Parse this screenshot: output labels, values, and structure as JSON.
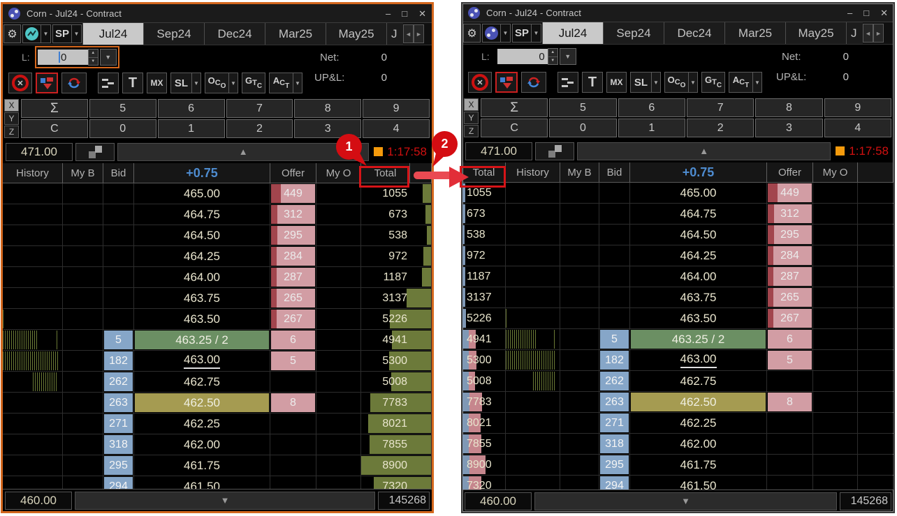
{
  "app": {
    "title": "Corn - Jul24 - Contract",
    "window_controls": {
      "minimize": "–",
      "maximize": "□",
      "close": "✕"
    },
    "toolbar": {
      "gear_icon": "⚙",
      "sp_label": "SP",
      "dropdown_icon": "▼",
      "tab_prev_icon": "◄",
      "tab_next_icon": "►"
    },
    "tabs": {
      "t1": "Jul24",
      "t2": "Sep24",
      "t3": "Dec24",
      "t4": "Mar25",
      "t5": "May25",
      "t6": "J"
    },
    "order_row": {
      "l_label": "L:",
      "l_value": "0",
      "net_label": "Net:",
      "net_value": "0",
      "upl_label": "UP&L:",
      "upl_value": "0"
    },
    "buttons": {
      "cancel_x": "✕",
      "t": "T",
      "mx": "MX",
      "sl": "SL",
      "oco": {
        "a": "O",
        "b": "C",
        "c": "O"
      },
      "gtc": {
        "a": "G",
        "b": "T",
        "c": "C"
      },
      "act": {
        "a": "A",
        "b": "C",
        "c": "T"
      }
    },
    "keypad": {
      "x": "X",
      "y": "Y",
      "z": "Z",
      "row1": [
        "Σ",
        "5",
        "6",
        "7",
        "8",
        "9"
      ],
      "row2": [
        "C",
        "0",
        "1",
        "2",
        "3",
        "4"
      ]
    },
    "price_nav": {
      "top_price": "471.00",
      "bottom_price": "460.00",
      "timer": "1:17:58",
      "total_volume": "145268",
      "up_icon": "▲",
      "down_icon": "▼"
    },
    "headers": {
      "history": "History",
      "my_bid": "My B",
      "bid": "Bid",
      "change": "+0.75",
      "offer": "Offer",
      "my_offer": "My O",
      "total": "Total"
    }
  },
  "ladder": {
    "rows": [
      {
        "price": "465.00",
        "bid": "",
        "offer": "449",
        "total": "1055",
        "offer_bar": 0.23,
        "total_bar": 0.12,
        "rt_blue": 0.07,
        "rt_pink": 0,
        "hist": [],
        "style": ""
      },
      {
        "price": "464.75",
        "bid": "",
        "offer": "312",
        "total": "673",
        "offer_bar": 0.15,
        "total_bar": 0.08,
        "rt_blue": 0.06,
        "rt_pink": 0,
        "hist": [],
        "style": ""
      },
      {
        "price": "464.50",
        "bid": "",
        "offer": "295",
        "total": "538",
        "offer_bar": 0.14,
        "total_bar": 0.06,
        "rt_blue": 0.05,
        "rt_pink": 0,
        "hist": [],
        "style": ""
      },
      {
        "price": "464.25",
        "bid": "",
        "offer": "284",
        "total": "972",
        "offer_bar": 0.13,
        "total_bar": 0.11,
        "rt_blue": 0.06,
        "rt_pink": 0,
        "hist": [],
        "style": ""
      },
      {
        "price": "464.00",
        "bid": "",
        "offer": "287",
        "total": "1187",
        "offer_bar": 0.13,
        "total_bar": 0.13,
        "rt_blue": 0.07,
        "rt_pink": 0,
        "hist": [],
        "style": ""
      },
      {
        "price": "463.75",
        "bid": "",
        "offer": "265",
        "total": "3137",
        "offer_bar": 0.12,
        "total_bar": 0.35,
        "rt_blue": 0.07,
        "rt_pink": 0,
        "hist": [],
        "style": ""
      },
      {
        "price": "463.50",
        "bid": "",
        "offer": "267",
        "total": "5226",
        "offer_bar": 0.12,
        "total_bar": 0.58,
        "rt_blue": 0.08,
        "rt_pink": 0,
        "hist": [
          [
            0,
            0.035
          ]
        ],
        "style": ""
      },
      {
        "price": "463.25 / 2",
        "bid": "5",
        "offer": "6",
        "total": "4941",
        "offer_bar": 0,
        "total_bar": 0.55,
        "rt_blue": 0.15,
        "rt_pink": 0.16,
        "hist": [
          [
            0,
            0.58
          ],
          [
            0.9,
            0.04
          ]
        ],
        "style": "trade"
      },
      {
        "price": "463.00",
        "bid": "182",
        "offer": "5",
        "total": "5300",
        "offer_bar": 0,
        "total_bar": 0.59,
        "rt_blue": 0.15,
        "rt_pink": 0.17,
        "hist": [
          [
            0,
            0.94
          ]
        ],
        "style": "underline"
      },
      {
        "price": "462.75",
        "bid": "262",
        "offer": "",
        "total": "5008",
        "offer_bar": 0,
        "total_bar": 0.56,
        "rt_blue": 0.14,
        "rt_pink": 0.15,
        "hist": [
          [
            0.5,
            0.42
          ]
        ],
        "style": ""
      },
      {
        "price": "462.50",
        "bid": "263",
        "offer": "8",
        "total": "7783",
        "offer_bar": 0,
        "total_bar": 0.86,
        "rt_blue": 0.16,
        "rt_pink": 0.3,
        "hist": [],
        "style": "pause"
      },
      {
        "price": "462.25",
        "bid": "271",
        "offer": "",
        "total": "8021",
        "offer_bar": 0,
        "total_bar": 0.89,
        "rt_blue": 0.14,
        "rt_pink": 0.28,
        "hist": [],
        "style": ""
      },
      {
        "price": "462.00",
        "bid": "318",
        "offer": "",
        "total": "7855",
        "offer_bar": 0,
        "total_bar": 0.87,
        "rt_blue": 0.14,
        "rt_pink": 0.3,
        "hist": [],
        "style": ""
      },
      {
        "price": "461.75",
        "bid": "295",
        "offer": "",
        "total": "8900",
        "offer_bar": 0,
        "total_bar": 0.99,
        "rt_blue": 0.16,
        "rt_pink": 0.38,
        "hist": [],
        "style": ""
      },
      {
        "price": "461.50",
        "bid": "294",
        "offer": "",
        "total": "7320",
        "offer_bar": 0,
        "total_bar": 0.81,
        "rt_blue": 0.14,
        "rt_pink": 0.3,
        "hist": [],
        "style": ""
      }
    ]
  },
  "annotations": {
    "step1": "1",
    "step2": "2"
  },
  "colors": {
    "active_window_border": "#d4671d",
    "bid_blue": "#86a6c8",
    "offer_pink": "#d29da4",
    "offer_bar_dark": "#a2454d",
    "total_olive": "#6c7a3a",
    "trade_green": "#6b8f63",
    "pause_olive": "#a59b51",
    "annotation_red": "#d40d12",
    "timer_red": "#d01010",
    "timer_square_orange": "#f49a0c",
    "change_header_blue": "#4e8cd0"
  }
}
